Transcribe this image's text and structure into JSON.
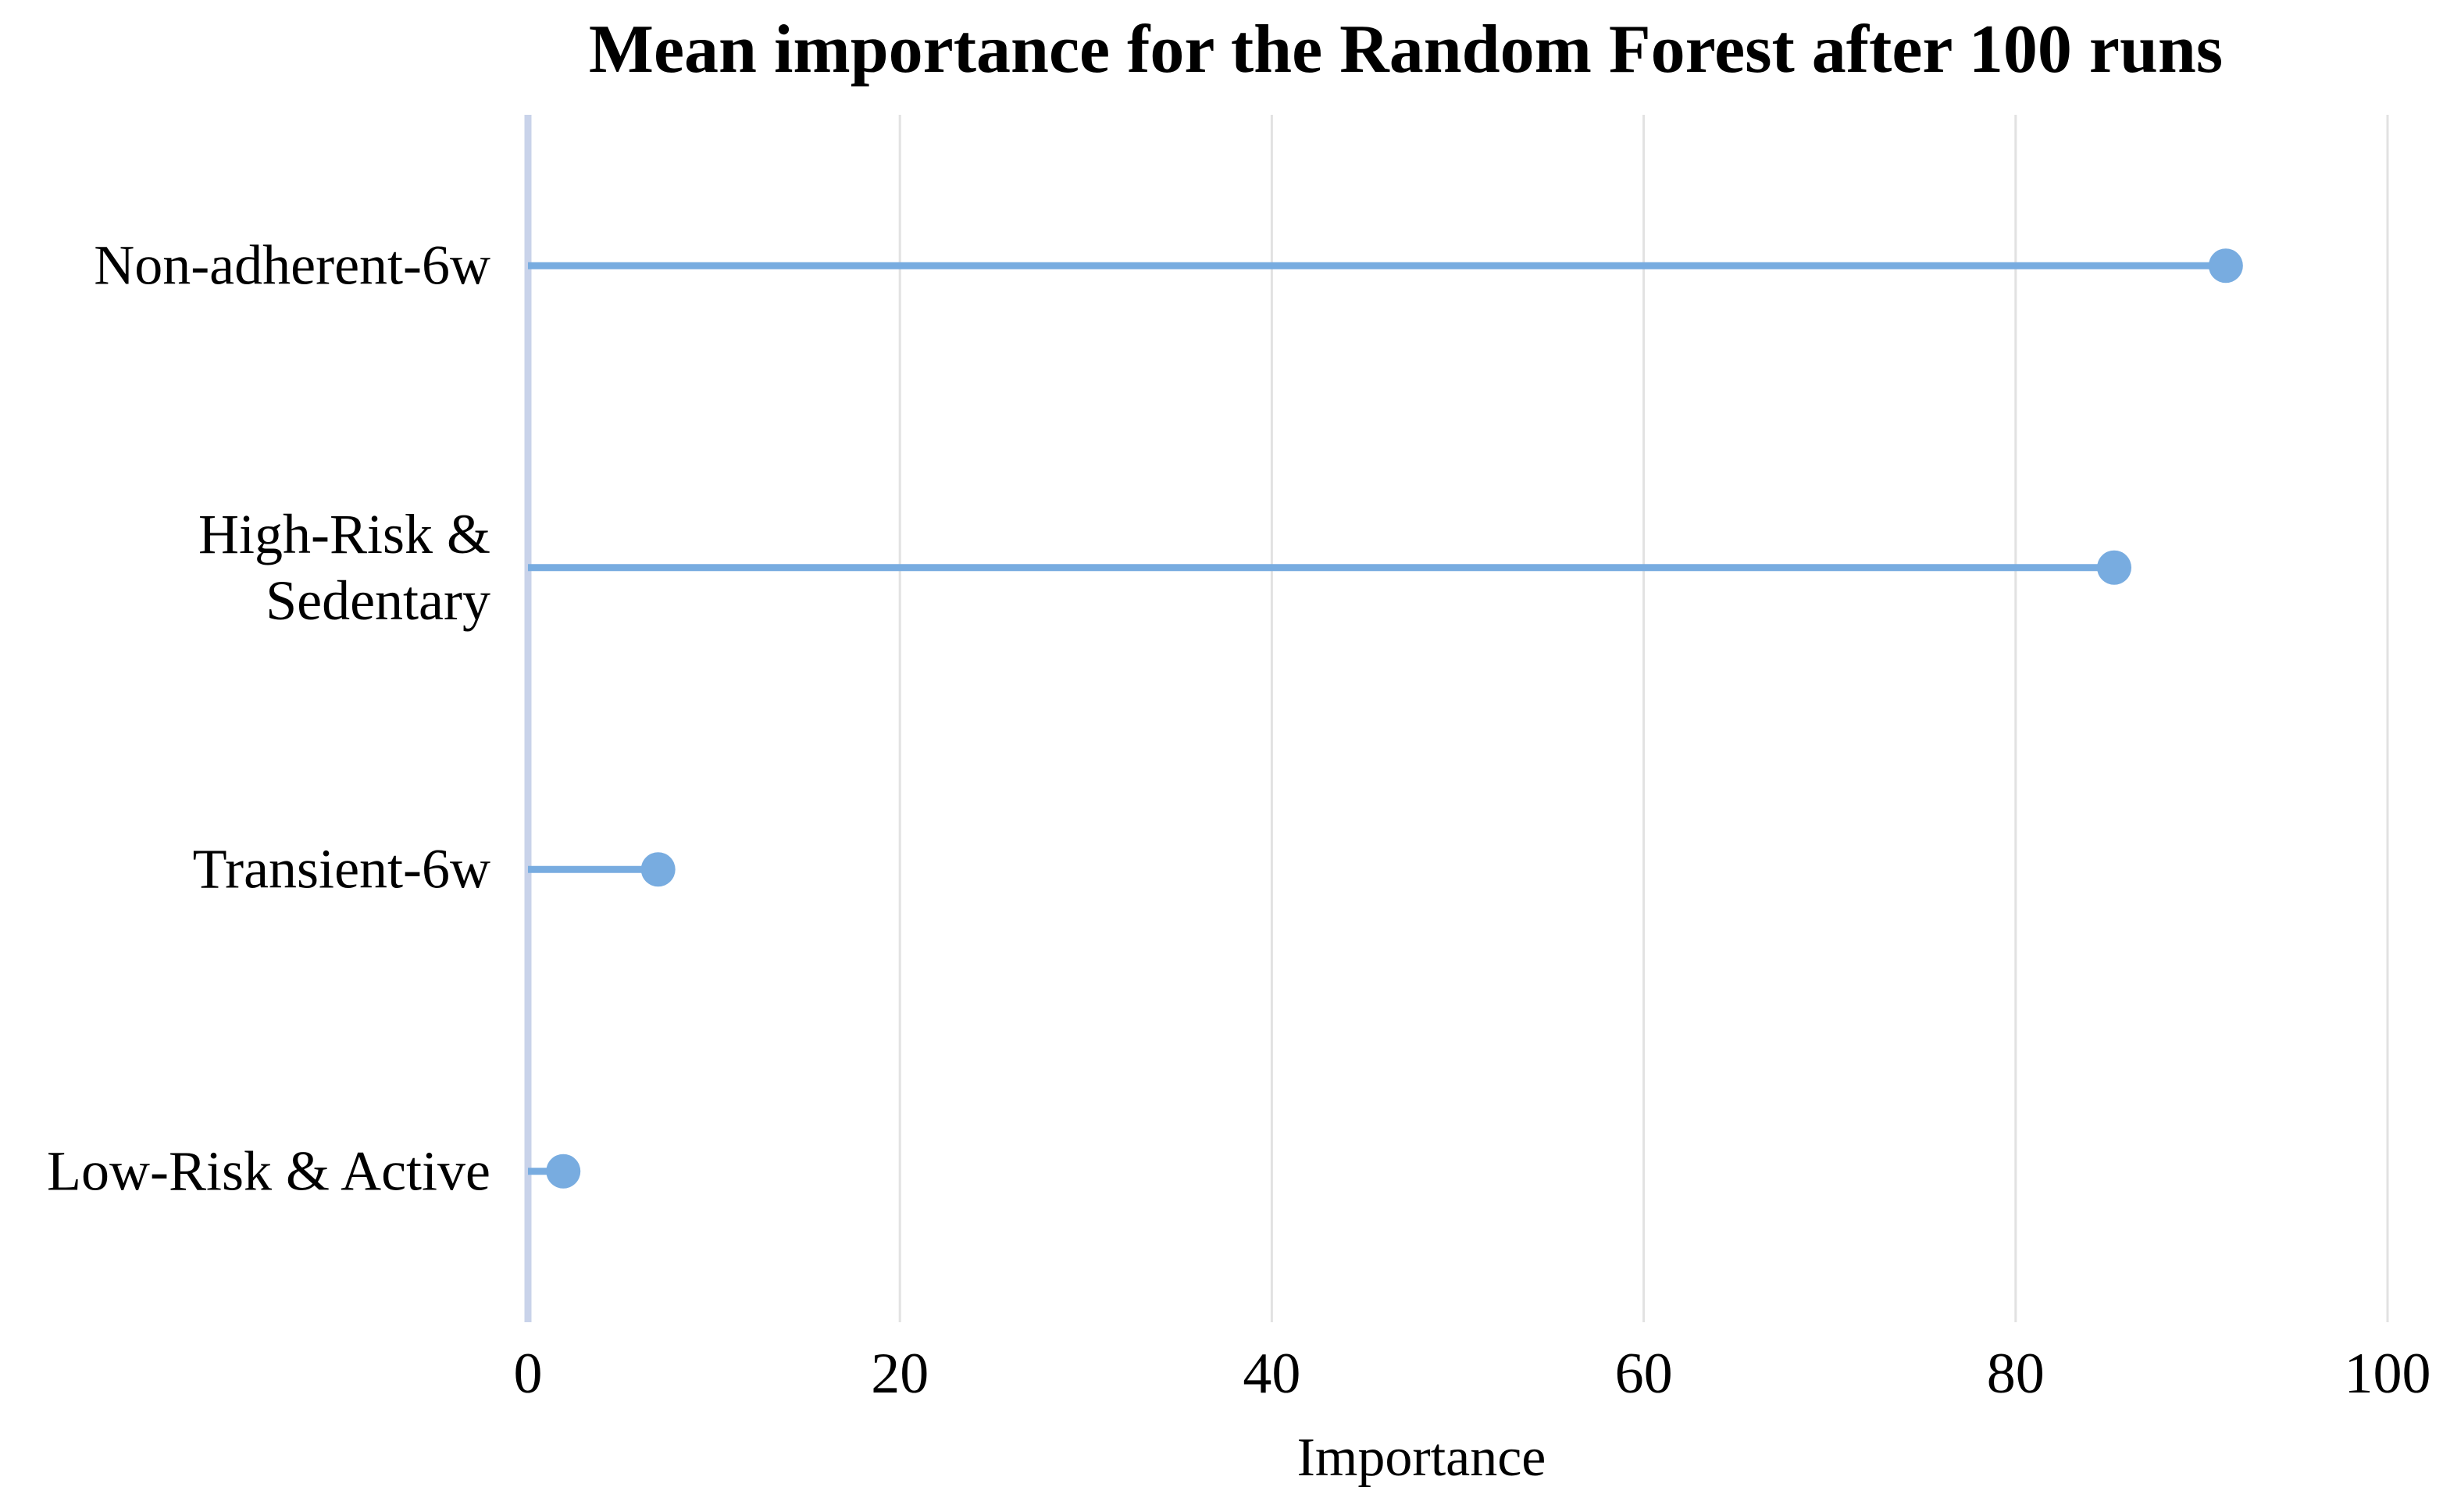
{
  "chart_data": {
    "type": "bar",
    "style": "lollipop",
    "orientation": "horizontal",
    "title": "Mean importance for the Random Forest after 100 runs",
    "categories": [
      "Non-adherent-6w",
      "High-Risk & Sedentary",
      "Transient-6w",
      "Low-Risk & Active"
    ],
    "category_label_lines": [
      [
        "Non-adherent-6w"
      ],
      [
        "High-Risk &",
        "Sedentary"
      ],
      [
        "Transient-6w"
      ],
      [
        "Low-Risk & Active"
      ]
    ],
    "values": [
      91.3,
      85.3,
      7.0,
      1.9
    ],
    "xlabel": "Importance",
    "ylabel": "",
    "xlim": [
      0,
      100
    ],
    "xticks": [
      0,
      20,
      40,
      60,
      80,
      100
    ],
    "xtick_labels": [
      "0",
      "20",
      "40",
      "60",
      "80",
      "100"
    ],
    "grid": "vertical-gridlines",
    "legend": "none",
    "marker": "circle",
    "colors": {
      "stem": "#78ACE0",
      "dot": "#78ACE0",
      "zero_axis": "#C9D3EA",
      "gridline": "#E2E2E2",
      "text": "#000000",
      "background": "#FFFFFF"
    }
  }
}
